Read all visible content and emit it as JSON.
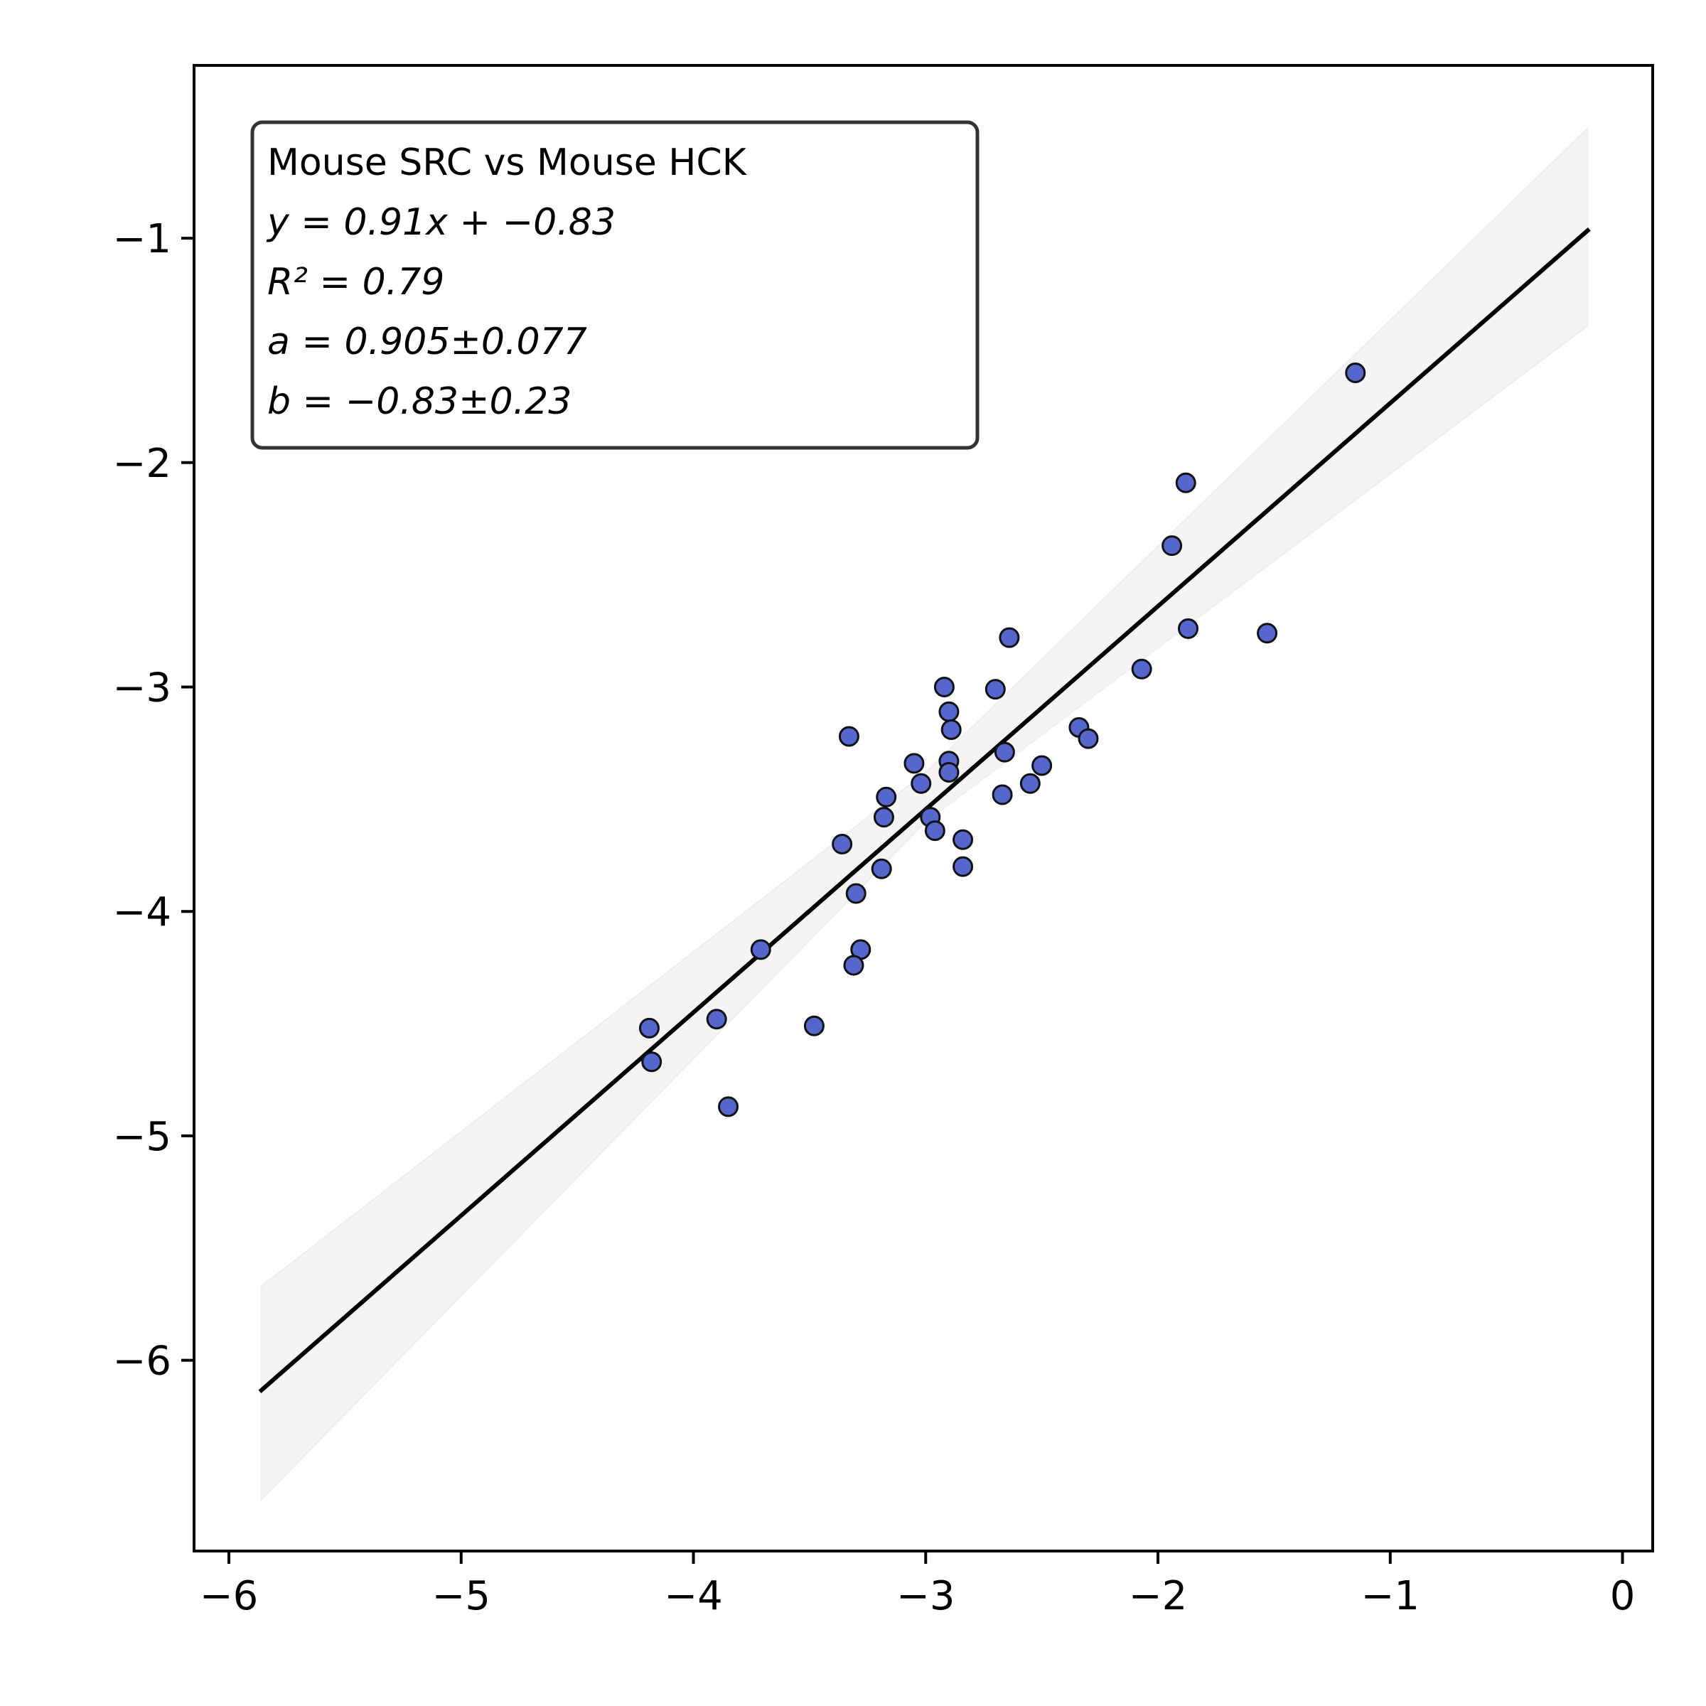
{
  "chart_data": {
    "type": "scatter",
    "title": "",
    "xlabel": "",
    "ylabel": "",
    "xlim": [
      -6.15,
      0.13
    ],
    "ylim": [
      -6.85,
      -0.23
    ],
    "x_ticks": [
      -6,
      -5,
      -4,
      -3,
      -2,
      -1,
      0
    ],
    "y_ticks": [
      -6,
      -5,
      -4,
      -3,
      -2,
      -1
    ],
    "x_tick_labels": [
      "−6",
      "−5",
      "−4",
      "−3",
      "−2",
      "−1",
      "0"
    ],
    "y_tick_labels": [
      "−6",
      "−5",
      "−4",
      "−3",
      "−2",
      "−1"
    ],
    "grid": false,
    "legend_placement": "top-left",
    "annotation_lines": [
      "Mouse SRC vs Mouse HCK",
      "y = 0.91x + −0.83",
      "R² = 0.79",
      "a = 0.905±0.077",
      "b = −0.83±0.23"
    ],
    "fit": {
      "slope": 0.905,
      "intercept": -0.83,
      "x_range": [
        -5.86,
        -0.15
      ]
    },
    "confidence_band": {
      "x": [
        -5.86,
        -3.0,
        -0.15
      ],
      "lower": [
        -6.62,
        -3.6,
        -1.39
      ],
      "upper": [
        -5.67,
        -3.38,
        -0.51
      ]
    },
    "series": [
      {
        "marker_color": "#5566cc",
        "marker_edge": "#111111",
        "points": [
          [
            -1.15,
            -1.6
          ],
          [
            -1.88,
            -2.09
          ],
          [
            -1.94,
            -2.37
          ],
          [
            -1.87,
            -2.74
          ],
          [
            -1.53,
            -2.76
          ],
          [
            -2.07,
            -2.92
          ],
          [
            -2.64,
            -2.78
          ],
          [
            -2.7,
            -3.01
          ],
          [
            -2.92,
            -3.0
          ],
          [
            -2.9,
            -3.11
          ],
          [
            -2.89,
            -3.19
          ],
          [
            -2.34,
            -3.18
          ],
          [
            -2.3,
            -3.23
          ],
          [
            -3.33,
            -3.22
          ],
          [
            -2.66,
            -3.29
          ],
          [
            -2.9,
            -3.33
          ],
          [
            -3.05,
            -3.34
          ],
          [
            -2.5,
            -3.35
          ],
          [
            -2.9,
            -3.38
          ],
          [
            -3.02,
            -3.43
          ],
          [
            -2.55,
            -3.43
          ],
          [
            -3.17,
            -3.49
          ],
          [
            -2.67,
            -3.48
          ],
          [
            -3.18,
            -3.58
          ],
          [
            -2.98,
            -3.58
          ],
          [
            -2.96,
            -3.64
          ],
          [
            -2.84,
            -3.68
          ],
          [
            -3.36,
            -3.7
          ],
          [
            -2.84,
            -3.8
          ],
          [
            -3.19,
            -3.81
          ],
          [
            -3.3,
            -3.92
          ],
          [
            -3.71,
            -4.17
          ],
          [
            -3.28,
            -4.17
          ],
          [
            -3.31,
            -4.24
          ],
          [
            -3.9,
            -4.48
          ],
          [
            -3.48,
            -4.51
          ],
          [
            -4.19,
            -4.52
          ],
          [
            -4.18,
            -4.67
          ],
          [
            -3.85,
            -4.87
          ]
        ]
      }
    ]
  }
}
